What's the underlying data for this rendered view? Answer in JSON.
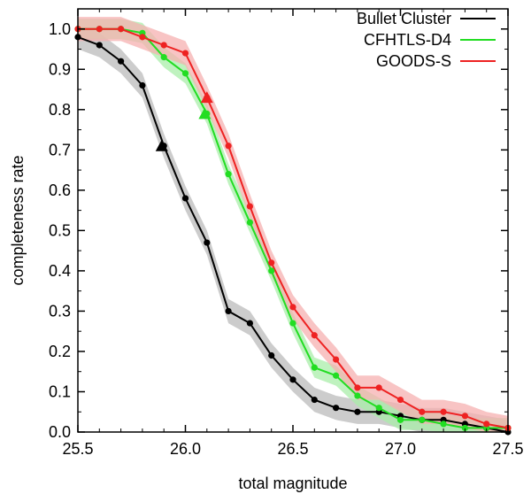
{
  "chart_data": {
    "type": "line",
    "xlabel": "total magnitude",
    "ylabel": "completeness rate",
    "xlim": [
      25.5,
      27.5
    ],
    "ylim": [
      0.0,
      1.05
    ],
    "xticks": [
      25.5,
      26.0,
      26.5,
      27.0,
      27.5
    ],
    "xtick_labels": [
      "25.5",
      "26.0",
      "26.5",
      "27.0",
      "27.5"
    ],
    "yticks": [
      0.0,
      0.1,
      0.2,
      0.3,
      0.4,
      0.5,
      0.6,
      0.7,
      0.8,
      0.9,
      1.0
    ],
    "ytick_labels": [
      "0.0",
      "0.1",
      "0.2",
      "0.3",
      "0.4",
      "0.5",
      "0.6",
      "0.7",
      "0.8",
      "0.9",
      "1.0"
    ],
    "grid": false,
    "legend_position": "top-right",
    "series": [
      {
        "name": "Bullet Cluster",
        "color": "#000000",
        "band_color": "#bbbbbb",
        "x": [
          25.5,
          25.6,
          25.7,
          25.8,
          25.9,
          26.0,
          26.1,
          26.2,
          26.3,
          26.4,
          26.5,
          26.6,
          26.7,
          26.8,
          26.9,
          27.0,
          27.1,
          27.2,
          27.3,
          27.4,
          27.5
        ],
        "y": [
          0.98,
          0.96,
          0.92,
          0.86,
          0.71,
          0.58,
          0.47,
          0.3,
          0.27,
          0.19,
          0.13,
          0.08,
          0.06,
          0.05,
          0.05,
          0.04,
          0.03,
          0.03,
          0.02,
          0.01,
          0.0
        ],
        "band": 0.03,
        "marker_50": {
          "x": 25.89,
          "y": 0.71
        }
      },
      {
        "name": "CFHTLS-D4",
        "color": "#22dd22",
        "band_color": "#aaeeaa",
        "x": [
          25.5,
          25.6,
          25.7,
          25.8,
          25.9,
          26.0,
          26.1,
          26.2,
          26.3,
          26.4,
          26.5,
          26.6,
          26.7,
          26.8,
          26.9,
          27.0,
          27.1,
          27.2,
          27.3,
          27.4,
          27.5
        ],
        "y": [
          1.0,
          1.0,
          1.0,
          0.99,
          0.93,
          0.89,
          0.79,
          0.64,
          0.52,
          0.4,
          0.27,
          0.16,
          0.14,
          0.09,
          0.06,
          0.03,
          0.03,
          0.02,
          0.01,
          0.01,
          0.01
        ],
        "band": 0.025,
        "marker_50": {
          "x": 26.09,
          "y": 0.79
        }
      },
      {
        "name": "GOODS-S",
        "color": "#ee2222",
        "band_color": "#f5b0b0",
        "x": [
          25.5,
          25.6,
          25.7,
          25.8,
          25.9,
          26.0,
          26.1,
          26.2,
          26.3,
          26.4,
          26.5,
          26.6,
          26.7,
          26.8,
          26.9,
          27.0,
          27.1,
          27.2,
          27.3,
          27.4,
          27.5
        ],
        "y": [
          1.0,
          1.0,
          1.0,
          0.98,
          0.96,
          0.94,
          0.83,
          0.71,
          0.56,
          0.42,
          0.31,
          0.24,
          0.18,
          0.11,
          0.11,
          0.08,
          0.05,
          0.05,
          0.04,
          0.02,
          0.01
        ],
        "band": 0.03,
        "marker_50": {
          "x": 26.1,
          "y": 0.83
        }
      }
    ]
  }
}
